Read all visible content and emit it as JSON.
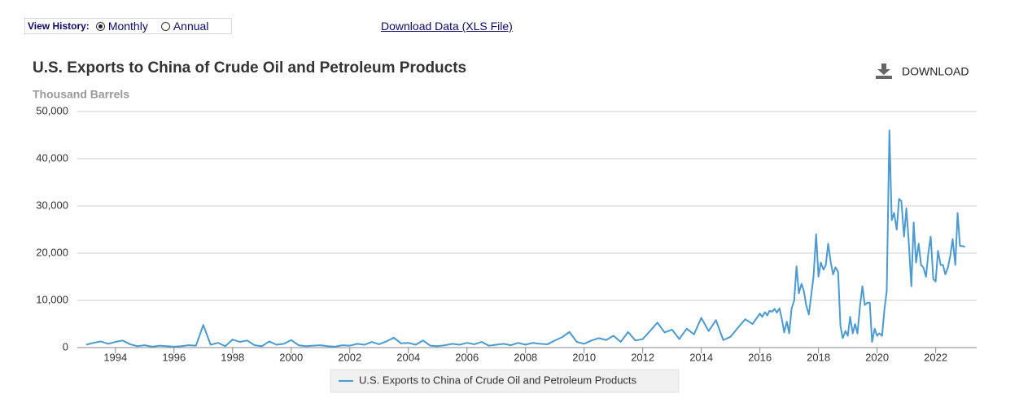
{
  "controls": {
    "view_history_label": "View History:",
    "options": [
      "Monthly",
      "Annual"
    ],
    "download_data_link": "Download Data (XLS File)"
  },
  "download_button": "DOWNLOAD",
  "chart_data": {
    "type": "line",
    "title": "U.S. Exports to China of Crude Oil and Petroleum Products",
    "subtitle": "Thousand Barrels",
    "xlim": [
      1992.7,
      2023.4
    ],
    "xticks": [
      1994,
      1996,
      1998,
      2000,
      2002,
      2004,
      2006,
      2008,
      2010,
      2012,
      2014,
      2016,
      2018,
      2020,
      2022
    ],
    "ylim": [
      0,
      50000
    ],
    "yticks": [
      0,
      {
        "value": 10000,
        "label": "10,000"
      },
      {
        "value": 20000,
        "label": "20,000"
      },
      {
        "value": 30000,
        "label": "30,000"
      },
      {
        "value": 40000,
        "label": "40,000"
      },
      {
        "value": 50000,
        "label": "50,000"
      }
    ],
    "grid": true,
    "legend": "bottom",
    "x": [
      1993.0,
      1993.25,
      1993.5,
      1993.75,
      1994.0,
      1994.25,
      1994.5,
      1994.75,
      1995.0,
      1995.25,
      1995.5,
      1995.75,
      1996.0,
      1996.25,
      1996.5,
      1996.75,
      1997.0,
      1997.25,
      1997.5,
      1997.75,
      1998.0,
      1998.25,
      1998.5,
      1998.75,
      1999.0,
      1999.25,
      1999.5,
      1999.75,
      2000.0,
      2000.25,
      2000.5,
      2000.75,
      2001.0,
      2001.25,
      2001.5,
      2001.75,
      2002.0,
      2002.25,
      2002.5,
      2002.75,
      2003.0,
      2003.25,
      2003.5,
      2003.75,
      2004.0,
      2004.25,
      2004.5,
      2004.75,
      2005.0,
      2005.25,
      2005.5,
      2005.75,
      2006.0,
      2006.25,
      2006.5,
      2006.75,
      2007.0,
      2007.25,
      2007.5,
      2007.75,
      2008.0,
      2008.25,
      2008.5,
      2008.75,
      2009.0,
      2009.25,
      2009.5,
      2009.75,
      2010.0,
      2010.25,
      2010.5,
      2010.75,
      2011.0,
      2011.25,
      2011.5,
      2011.75,
      2012.0,
      2012.25,
      2012.5,
      2012.75,
      2013.0,
      2013.25,
      2013.5,
      2013.75,
      2014.0,
      2014.25,
      2014.5,
      2014.75,
      2015.0,
      2015.25,
      2015.5,
      2015.75,
      2016.0,
      2016.08,
      2016.17,
      2016.25,
      2016.33,
      2016.42,
      2016.5,
      2016.58,
      2016.67,
      2016.75,
      2016.83,
      2016.92,
      2017.0,
      2017.08,
      2017.17,
      2017.25,
      2017.33,
      2017.42,
      2017.5,
      2017.58,
      2017.67,
      2017.75,
      2017.83,
      2017.92,
      2018.0,
      2018.08,
      2018.17,
      2018.25,
      2018.33,
      2018.42,
      2018.5,
      2018.58,
      2018.67,
      2018.75,
      2018.83,
      2018.92,
      2019.0,
      2019.08,
      2019.17,
      2019.25,
      2019.33,
      2019.42,
      2019.5,
      2019.58,
      2019.67,
      2019.75,
      2019.83,
      2019.92,
      2020.0,
      2020.08,
      2020.17,
      2020.25,
      2020.33,
      2020.42,
      2020.5,
      2020.58,
      2020.67,
      2020.75,
      2020.83,
      2020.92,
      2021.0,
      2021.08,
      2021.17,
      2021.25,
      2021.33,
      2021.42,
      2021.5,
      2021.58,
      2021.67,
      2021.75,
      2021.83,
      2021.92,
      2022.0,
      2022.08,
      2022.17,
      2022.25,
      2022.33,
      2022.42,
      2022.5,
      2022.58,
      2022.67,
      2022.75,
      2022.83,
      2022.92,
      2023.0
    ],
    "series": [
      {
        "name": "U.S. Exports to China of Crude Oil and Petroleum Products",
        "color": "#4a9ad4",
        "values": [
          600,
          1000,
          1300,
          800,
          1200,
          1500,
          700,
          300,
          500,
          200,
          400,
          300,
          200,
          300,
          500,
          400,
          4800,
          600,
          1000,
          300,
          1700,
          1200,
          1500,
          500,
          300,
          1300,
          600,
          800,
          1600,
          500,
          300,
          400,
          500,
          300,
          200,
          500,
          400,
          800,
          600,
          1200,
          700,
          1300,
          2100,
          900,
          1000,
          600,
          1500,
          400,
          300,
          500,
          800,
          600,
          1000,
          700,
          1200,
          400,
          600,
          800,
          500,
          1000,
          600,
          1000,
          800,
          700,
          1500,
          2200,
          3300,
          1200,
          800,
          1500,
          2000,
          1600,
          2500,
          1200,
          3300,
          1500,
          1800,
          3500,
          5300,
          3200,
          3800,
          1800,
          4000,
          2800,
          6300,
          3500,
          5800,
          1600,
          2300,
          4200,
          6000,
          5000,
          7200,
          6500,
          7500,
          6800,
          7800,
          7600,
          8200,
          7400,
          8300,
          6000,
          3200,
          5500,
          3000,
          8200,
          10000,
          17200,
          11500,
          13500,
          12000,
          9000,
          7000,
          11000,
          15000,
          24000,
          15000,
          18000,
          16500,
          17500,
          22000,
          18000,
          15500,
          17000,
          16000,
          4500,
          2000,
          3500,
          2500,
          6500,
          3000,
          5000,
          3000,
          9000,
          13000,
          9000,
          9500,
          9500,
          1200,
          4000,
          2500,
          3000,
          2500,
          8000,
          12000,
          46000,
          27000,
          28500,
          25000,
          31500,
          31000,
          23500,
          29500,
          22500,
          13000,
          26500,
          18000,
          22000,
          17500,
          17000,
          15000,
          20000,
          23500,
          14500,
          14000,
          20500,
          17500,
          17500,
          15500,
          17000,
          19500,
          23000,
          17500,
          28500,
          21500,
          21500,
          21300
        ]
      }
    ]
  }
}
